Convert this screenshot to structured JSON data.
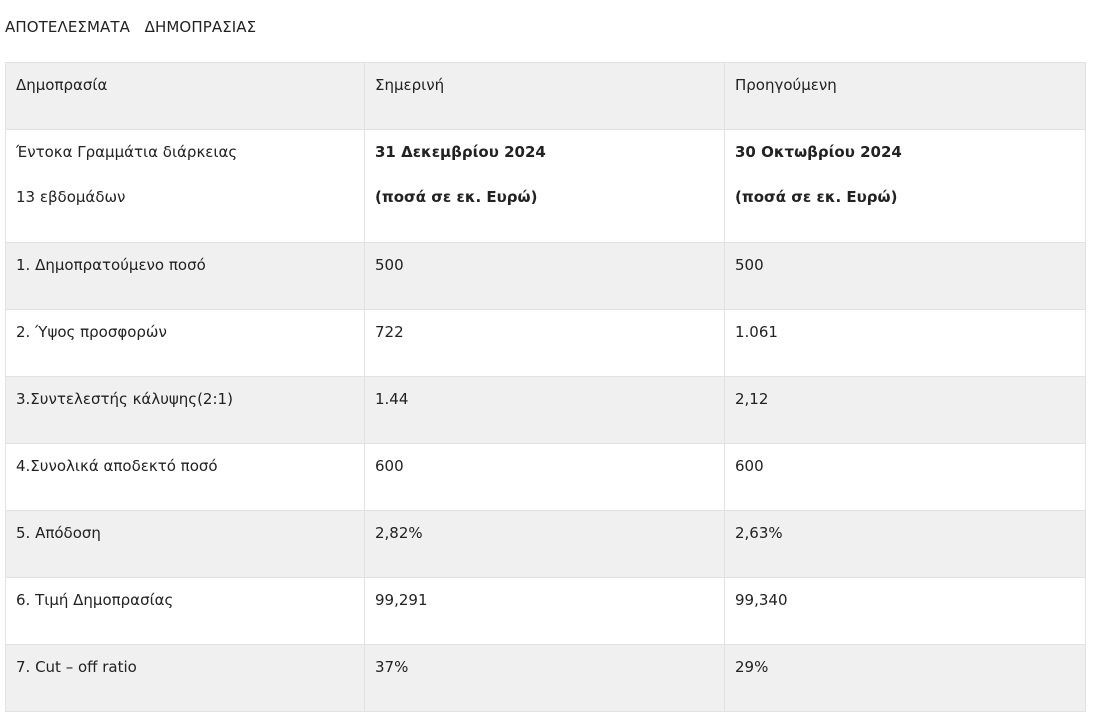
{
  "page_title": "ΑΠΟΤΕΛΕΣΜΑΤΑ   ΔΗΜΟΠΡΑΣΙΑΣ",
  "table": {
    "header": {
      "col1": "Δημοπρασία",
      "col2": "Σημερινή",
      "col3": "Προηγούμενη"
    },
    "instrument": {
      "name_line1": "Έντοκα Γραμμάτια διάρκειας",
      "name_line2": "13 εβδομάδων",
      "current_date": "31 Δεκεμβρίου 2024",
      "current_unit": "(ποσά σε εκ. Ευρώ)",
      "previous_date": "30 Οκτωβρίου 2024",
      "previous_unit": "(ποσά σε εκ. Ευρώ)"
    },
    "rows": [
      {
        "label": "1. Δημοπρατούμενο ποσό",
        "current": "500",
        "previous": "500"
      },
      {
        "label": "2. Ύψος προσφορών",
        "current": "722",
        "previous": "1.061"
      },
      {
        "label": "3.Συντελεστής κάλυψης(2:1)",
        "current": "1.44",
        "previous": "2,12"
      },
      {
        "label": "4.Συνολικά αποδεκτό ποσό",
        "current": "600",
        "previous": "600"
      },
      {
        "label": "5. Απόδοση",
        "current": "2,82%",
        "previous": "2,63%"
      },
      {
        "label": "6. Τιμή Δημοπρασίας",
        "current": "99,291",
        "previous": "99,340"
      },
      {
        "label": "7. Cut – off ratio",
        "current": "37%",
        "previous": "29%"
      }
    ]
  }
}
